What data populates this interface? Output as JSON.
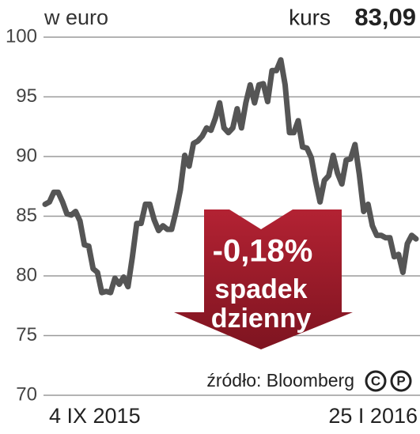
{
  "chart_data": {
    "type": "line",
    "unit_label": "w euro",
    "price_label": "kurs",
    "price_value": "83,09",
    "annotation": [
      "-0,18%",
      "spadek",
      "dzienny"
    ],
    "source": "źródło: Bloomberg",
    "logo": [
      "C",
      "P"
    ],
    "categories": [
      "4 IX 2015",
      null,
      null,
      null,
      null,
      null,
      null,
      null,
      null,
      null,
      null,
      null,
      null,
      null,
      null,
      null,
      null,
      null,
      null,
      null,
      null,
      null,
      null,
      null,
      null,
      null,
      null,
      null,
      null,
      null,
      null,
      null,
      null,
      null,
      null,
      null,
      null,
      null,
      null,
      null,
      null,
      null,
      null,
      null,
      null,
      null,
      null,
      null,
      null,
      null,
      null,
      null,
      null,
      null,
      null,
      null,
      null,
      null,
      null,
      null,
      null,
      null,
      null,
      null,
      null,
      null,
      null,
      null,
      null,
      null,
      null,
      null,
      null,
      null,
      null,
      null,
      null,
      null,
      null,
      null,
      null,
      null,
      null,
      null,
      null,
      "25 I 2016"
    ],
    "values": [
      86.0,
      86.2,
      87.0,
      87.0,
      86.2,
      85.2,
      85.1,
      85.4,
      84.6,
      82.6,
      82.5,
      80.6,
      80.3,
      78.6,
      78.7,
      78.6,
      79.8,
      79.3,
      79.9,
      79.1,
      81.6,
      84.4,
      84.4,
      86.0,
      86.0,
      84.7,
      83.8,
      84.2,
      83.9,
      83.9,
      85.4,
      87.2,
      90.1,
      89.2,
      91.1,
      91.3,
      91.7,
      92.4,
      92.2,
      93.2,
      94.5,
      92.4,
      92.0,
      92.4,
      94.0,
      92.4,
      94.5,
      96.0,
      94.5,
      96.0,
      96.1,
      94.6,
      97.2,
      97.2,
      98.1,
      96.0,
      92.0,
      92.0,
      93.0,
      90.8,
      90.7,
      89.9,
      87.9,
      86.2,
      88.0,
      88.4,
      90.1,
      88.6,
      87.7,
      89.7,
      89.8,
      91.0,
      88.5,
      85.4,
      86.0,
      84.2,
      83.4,
      83.4,
      83.2,
      83.2,
      81.6,
      81.8,
      80.3,
      82.7,
      83.4,
      83.1
    ],
    "color": "#555555",
    "ylim": [
      70,
      100
    ],
    "yticks": [
      70,
      75,
      80,
      85,
      90,
      95,
      100
    ],
    "grid": true
  }
}
